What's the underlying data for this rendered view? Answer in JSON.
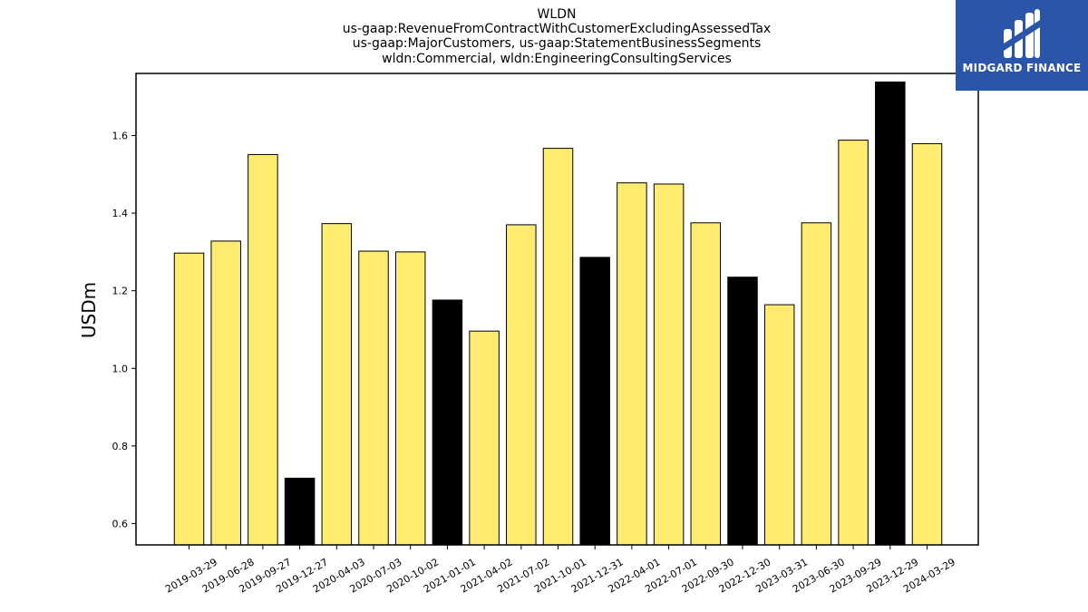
{
  "logo": {
    "text": "MIDGARD FINANCE"
  },
  "colors": {
    "highlight": "#ffeb70",
    "q4": "#000000",
    "edge": "#000000"
  },
  "chart_data": {
    "type": "bar",
    "title_lines": [
      "WLDN",
      "us-gaap:RevenueFromContractWithCustomerExcludingAssessedTax",
      "us-gaap:MajorCustomers, us-gaap:StatementBusinessSegments",
      "wldn:Commercial, wldn:EngineeringConsultingServices"
    ],
    "xlabel": "",
    "ylabel": "USDm",
    "ylim": [
      0.545,
      1.76
    ],
    "yticks": [
      0.6,
      0.8,
      1.0,
      1.2,
      1.4,
      1.6
    ],
    "ytick_labels": [
      "0.6",
      "0.8",
      "1.0",
      "1.2",
      "1.4",
      "1.6"
    ],
    "grid": false,
    "categories": [
      "2019-03-29",
      "2019-06-28",
      "2019-09-27",
      "2019-12-27",
      "2020-04-03",
      "2020-07-03",
      "2020-10-02",
      "2021-01-01",
      "2021-04-02",
      "2021-07-02",
      "2021-10-01",
      "2021-12-31",
      "2022-04-01",
      "2022-07-01",
      "2022-09-30",
      "2022-12-30",
      "2023-03-31",
      "2023-06-30",
      "2023-09-29",
      "2023-12-29",
      "2024-03-29"
    ],
    "values": [
      1.297,
      1.328,
      1.551,
      0.717,
      1.373,
      1.302,
      1.3,
      1.176,
      1.096,
      1.37,
      1.567,
      1.286,
      1.478,
      1.475,
      1.375,
      1.235,
      1.164,
      1.375,
      1.588,
      1.738,
      1.579
    ],
    "bar_colors": [
      "#ffeb70",
      "#ffeb70",
      "#ffeb70",
      "#000000",
      "#ffeb70",
      "#ffeb70",
      "#ffeb70",
      "#000000",
      "#ffeb70",
      "#ffeb70",
      "#ffeb70",
      "#000000",
      "#ffeb70",
      "#ffeb70",
      "#ffeb70",
      "#000000",
      "#ffeb70",
      "#ffeb70",
      "#ffeb70",
      "#000000",
      "#ffeb70"
    ]
  }
}
